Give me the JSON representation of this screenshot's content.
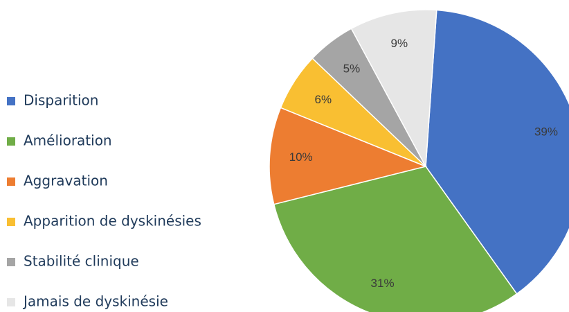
{
  "chart_data": {
    "type": "pie",
    "categories": [
      "Disparition",
      "Amélioration",
      "Aggravation",
      "Apparition de dyskinésies",
      "Stabilité clinique",
      "Jamais de dyskinésie"
    ],
    "values": [
      39,
      31,
      10,
      6,
      5,
      9
    ],
    "value_labels": [
      "39%",
      "31%",
      "10%",
      "6%",
      "5%",
      "9%"
    ],
    "colors": [
      "#4472c4",
      "#70ad47",
      "#ed7d31",
      "#f9bf32",
      "#a5a5a5",
      "#e6e6e6"
    ],
    "legend": "left"
  }
}
